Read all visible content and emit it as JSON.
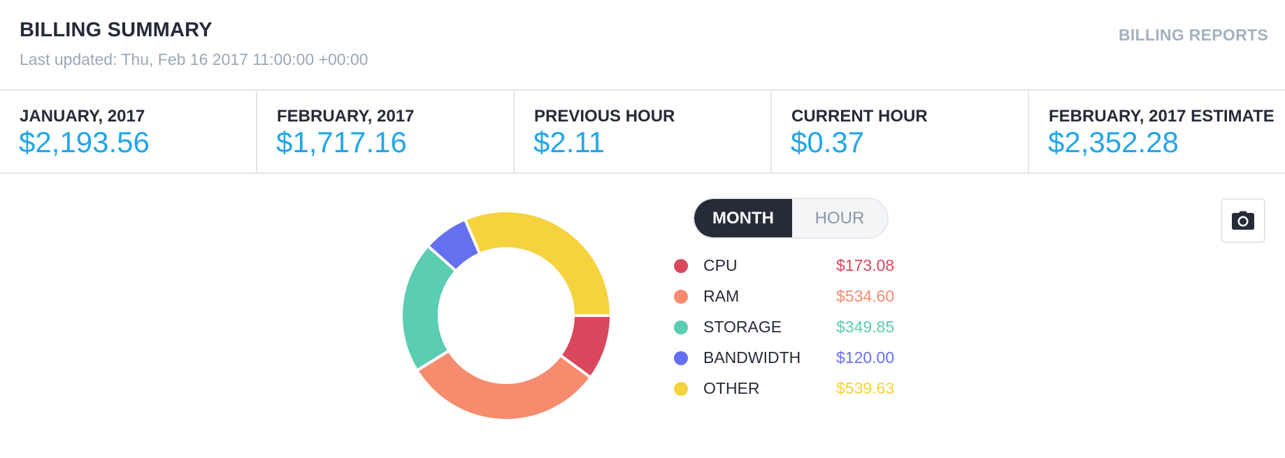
{
  "header": {
    "title": "BILLING SUMMARY",
    "last_updated": "Last updated: Thu, Feb 16 2017 11:00:00 +00:00",
    "reports_link": "BILLING REPORTS"
  },
  "stats": [
    {
      "label": "JANUARY, 2017",
      "value": "$2,193.56"
    },
    {
      "label": "FEBRUARY, 2017",
      "value": "$1,717.16"
    },
    {
      "label": "PREVIOUS HOUR",
      "value": "$2.11"
    },
    {
      "label": "CURRENT HOUR",
      "value": "$0.37"
    },
    {
      "label": "FEBRUARY, 2017 ESTIMATE",
      "value": "$2,352.28"
    }
  ],
  "toggle": {
    "month": "MONTH",
    "hour": "HOUR",
    "selected": "MONTH"
  },
  "legend": [
    {
      "name": "CPU",
      "amount": "$173.08",
      "color": "#d9485c"
    },
    {
      "name": "RAM",
      "amount": "$534.60",
      "color": "#f68b6e"
    },
    {
      "name": "STORAGE",
      "amount": "$349.85",
      "color": "#5bcdb1"
    },
    {
      "name": "BANDWIDTH",
      "amount": "$120.00",
      "color": "#6470f0"
    },
    {
      "name": "OTHER",
      "amount": "$539.63",
      "color": "#f6d33e"
    }
  ],
  "chart_data": {
    "type": "pie",
    "categories": [
      "CPU",
      "RAM",
      "STORAGE",
      "BANDWIDTH",
      "OTHER"
    ],
    "values": [
      173.08,
      534.6,
      349.85,
      120.0,
      539.63
    ],
    "colors": [
      "#d9485c",
      "#f68b6e",
      "#5bcdb1",
      "#6470f0",
      "#f6d33e"
    ]
  },
  "icons": {
    "camera": "camera-icon"
  },
  "colors": {
    "accent": "#22a6e8",
    "dark": "#262b38",
    "muted": "#9aa8b6"
  }
}
